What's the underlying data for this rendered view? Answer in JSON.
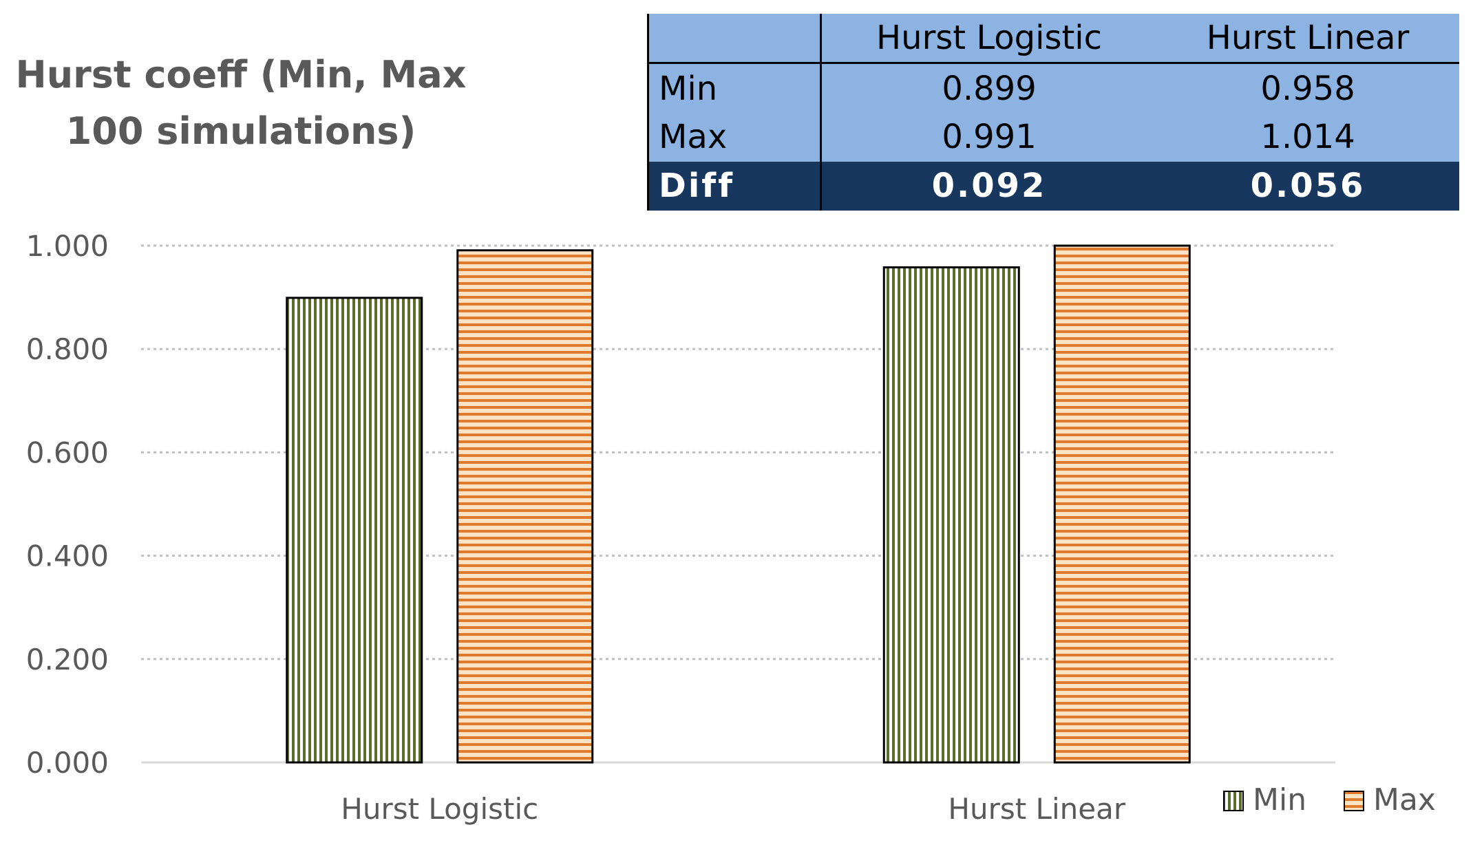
{
  "chart_data": {
    "type": "bar",
    "title": "Hurst coeff (Min, Max 100 simulations)",
    "title_lines": [
      "Hurst coeff (Min, Max",
      "100 simulations)"
    ],
    "categories": [
      "Hurst Logistic",
      "Hurst Linear"
    ],
    "series": [
      {
        "name": "Min",
        "values": [
          0.899,
          0.958
        ],
        "color": "#5a6e2c",
        "pattern": "vertical-stripes"
      },
      {
        "name": "Max",
        "values": [
          0.991,
          1.014
        ],
        "color": "#e07b2e",
        "pattern": "horizontal-stripes"
      }
    ],
    "ylim": [
      0,
      1.0
    ],
    "yticks": [
      "0.000",
      "0.200",
      "0.400",
      "0.600",
      "0.800",
      "1.000"
    ],
    "xlabel": "",
    "ylabel": "",
    "grid": true,
    "legend_position": "bottom-right"
  },
  "summary_table": {
    "columns": [
      "",
      "Hurst Logistic",
      "Hurst Linear"
    ],
    "rows": [
      {
        "label": "Min",
        "values": [
          "0.899",
          "0.958"
        ]
      },
      {
        "label": "Max",
        "values": [
          "0.991",
          "1.014"
        ]
      },
      {
        "label": "Diff",
        "values": [
          "0.092",
          "0.056"
        ],
        "highlight": true
      }
    ],
    "header_color": "#8db3e2",
    "highlight_color": "#17375e"
  }
}
